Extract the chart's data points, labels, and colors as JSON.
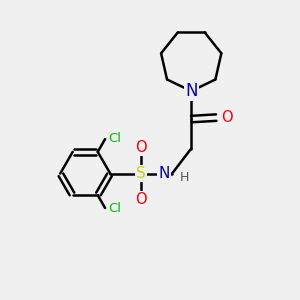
{
  "background_color": "#f0f0f0",
  "atom_colors": {
    "C": "#000000",
    "N": "#0000cc",
    "O": "#ff0000",
    "S": "#cccc00",
    "Cl": "#00bb00",
    "H": "#555555"
  },
  "bond_color": "#000000",
  "bond_width": 1.8,
  "font_size_atoms": 10,
  "fig_width": 3.0,
  "fig_height": 3.0,
  "dpi": 100
}
